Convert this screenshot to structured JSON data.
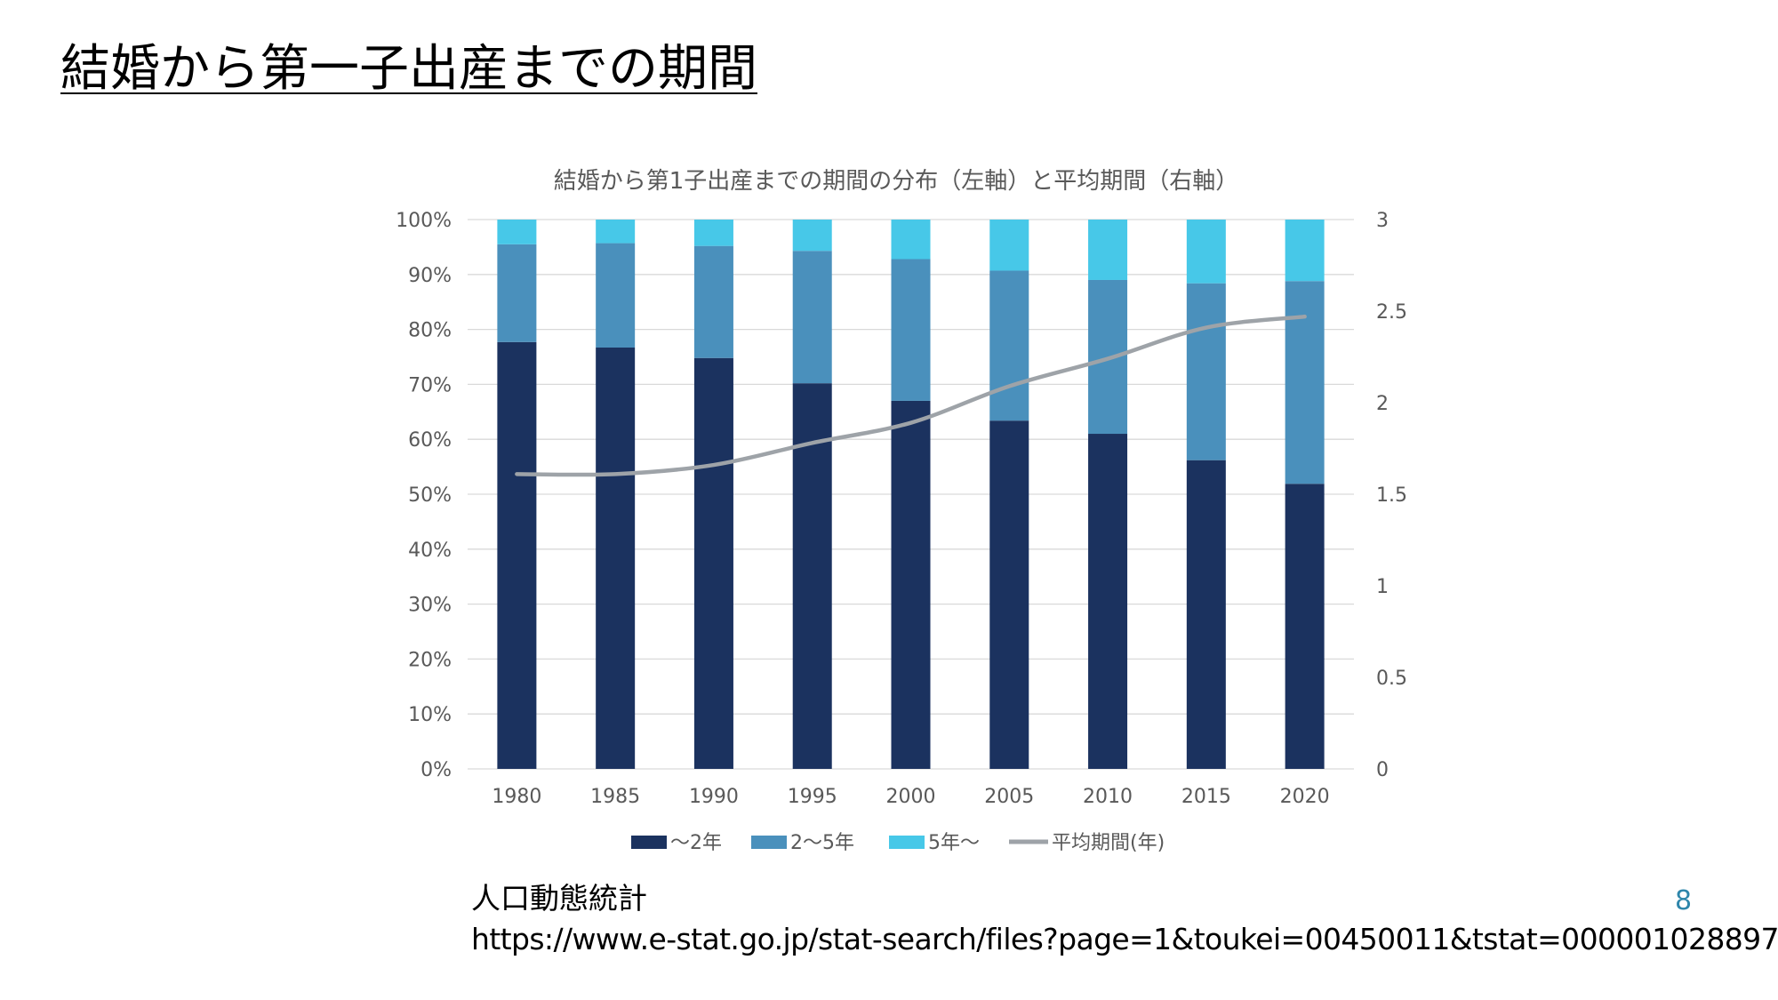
{
  "slide": {
    "title": "結婚から第一子出産までの期間",
    "source_label": "人口動態統計",
    "source_url": "https://www.e-stat.go.jp/stat-search/files?page=1&toukei=00450011&tstat=000001028897",
    "page_number": "8"
  },
  "colors": {
    "series_0_2": "#1B325F",
    "series_2_5": "#4A90BC",
    "series_5_plus": "#47C8E8",
    "series_avg": "#9EA3A8",
    "grid": "#D9D9D9",
    "axis_text": "#595959",
    "page_number": "#2E86AB"
  },
  "chart_data": {
    "type": "bar",
    "stacked": true,
    "percent_stacked": true,
    "title": "結婚から第1子出産までの期間の分布（左軸）と平均期間（右軸）",
    "categories": [
      "1980",
      "1985",
      "1990",
      "1995",
      "2000",
      "2005",
      "2010",
      "2015",
      "2020"
    ],
    "series": [
      {
        "name": "～2年",
        "values": [
          77.7,
          76.7,
          74.8,
          70.2,
          67.0,
          63.4,
          61.0,
          56.2,
          51.9
        ]
      },
      {
        "name": "2～5年",
        "values": [
          17.8,
          19.0,
          20.4,
          24.1,
          25.8,
          27.3,
          28.0,
          32.2,
          36.9
        ]
      },
      {
        "name": "5年～",
        "values": [
          4.5,
          4.3,
          4.8,
          5.7,
          7.2,
          9.3,
          11.0,
          11.6,
          11.2
        ]
      }
    ],
    "line_series": {
      "name": "平均期間(年)",
      "axis": "right",
      "values": [
        1.61,
        1.61,
        1.66,
        1.78,
        1.89,
        2.09,
        2.24,
        2.41,
        2.47
      ]
    },
    "y_left": {
      "min": 0,
      "max": 100,
      "step": 10,
      "tick_labels": [
        "0%",
        "10%",
        "20%",
        "30%",
        "40%",
        "50%",
        "60%",
        "70%",
        "80%",
        "90%",
        "100%"
      ]
    },
    "y_right": {
      "min": 0,
      "max": 3,
      "step": 0.5,
      "tick_labels": [
        "0",
        "0.5",
        "1",
        "1.5",
        "2",
        "2.5",
        "3"
      ]
    },
    "grid": true,
    "legend_position": "bottom",
    "legend": [
      "～2年",
      "2～5年",
      "5年～",
      "平均期間(年)"
    ]
  }
}
